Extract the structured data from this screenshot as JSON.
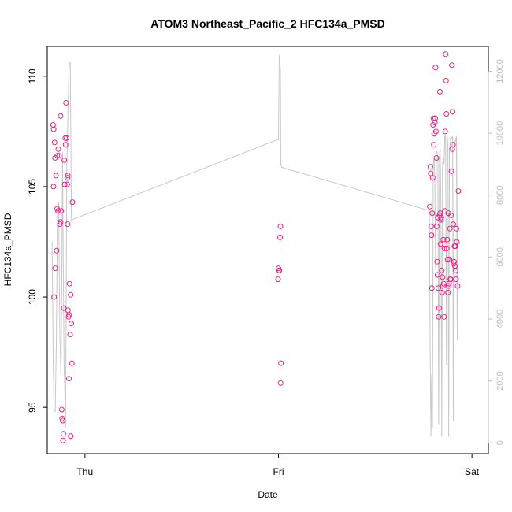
{
  "chart_data": {
    "type": "scatter",
    "title": "ATOM3 Northeast_Pacific_2 HFC134a_PMSD",
    "xlabel": "Date",
    "ylabel": "HFC134a_PMSD",
    "x_ticks": [
      {
        "label": "Thu",
        "value": 1.0
      },
      {
        "label": "Fri",
        "value": 2.0
      },
      {
        "label": "Sat",
        "value": 3.0
      }
    ],
    "xlim": [
      0.805,
      3.085
    ],
    "ylim": [
      92.9,
      111.35
    ],
    "y_ticks": [
      95,
      100,
      105,
      110
    ],
    "y2lim": [
      -350,
      12800
    ],
    "y2_ticks": [
      0,
      2000,
      4000,
      6000,
      8000,
      10000,
      12000
    ],
    "point_color": "#ee1f84",
    "secondary_line_color": "#c8c8c8",
    "series": [
      {
        "points": [
          [
            0.835,
            107.8
          ],
          [
            0.838,
            107.6
          ],
          [
            0.843,
            107.0
          ],
          [
            0.845,
            106.3
          ],
          [
            0.85,
            105.5
          ],
          [
            0.857,
            106.4
          ],
          [
            0.862,
            106.7
          ],
          [
            0.866,
            106.4
          ],
          [
            0.87,
            103.3
          ],
          [
            0.874,
            103.4
          ],
          [
            0.877,
            103.9
          ],
          [
            0.882,
            94.5
          ],
          [
            0.885,
            94.4
          ],
          [
            0.888,
            93.8
          ],
          [
            0.89,
            99.5
          ],
          [
            0.893,
            106.2
          ],
          [
            0.895,
            105.1
          ],
          [
            0.898,
            107.2
          ],
          [
            0.9,
            106.9
          ],
          [
            0.902,
            108.8
          ],
          [
            0.905,
            107.2
          ],
          [
            0.908,
            105.1
          ],
          [
            0.91,
            103.3
          ],
          [
            0.912,
            99.4
          ],
          [
            0.915,
            99.1
          ],
          [
            0.918,
            99.2
          ],
          [
            0.92,
            100.6
          ],
          [
            0.923,
            98.3
          ],
          [
            0.926,
            100.1
          ],
          [
            0.929,
            98.8
          ],
          [
            0.932,
            97.0
          ],
          [
            0.935,
            104.3
          ],
          [
            0.837,
            105.0
          ],
          [
            0.84,
            100.0
          ],
          [
            0.846,
            101.3
          ],
          [
            0.853,
            102.1
          ],
          [
            0.856,
            104.0
          ],
          [
            0.86,
            103.9
          ],
          [
            0.88,
            94.9
          ],
          [
            0.886,
            93.5
          ],
          [
            0.909,
            105.4
          ],
          [
            0.911,
            105.5
          ],
          [
            0.917,
            96.3
          ],
          [
            0.926,
            93.7
          ],
          [
            0.874,
            108.2
          ],
          [
            1.998,
            100.8
          ],
          [
            2.0,
            101.3
          ],
          [
            2.003,
            101.2
          ],
          [
            2.005,
            101.2
          ],
          [
            2.008,
            102.7
          ],
          [
            2.01,
            103.2
          ],
          [
            2.013,
            97.0
          ],
          [
            2.011,
            96.1
          ],
          [
            2.782,
            104.1
          ],
          [
            2.785,
            105.9
          ],
          [
            2.787,
            105.6
          ],
          [
            2.789,
            103.2
          ],
          [
            2.791,
            102.8
          ],
          [
            2.793,
            100.4
          ],
          [
            2.795,
            103.8
          ],
          [
            2.797,
            105.4
          ],
          [
            2.799,
            107.8
          ],
          [
            2.801,
            108.1
          ],
          [
            2.803,
            106.9
          ],
          [
            2.805,
            107.4
          ],
          [
            2.808,
            107.9
          ],
          [
            2.81,
            108.1
          ],
          [
            2.812,
            110.4
          ],
          [
            2.814,
            107.5
          ],
          [
            2.816,
            106.3
          ],
          [
            2.818,
            103.2
          ],
          [
            2.82,
            101.6
          ],
          [
            2.822,
            101.0
          ],
          [
            2.824,
            103.6
          ],
          [
            2.826,
            100.4
          ],
          [
            2.828,
            99.1
          ],
          [
            2.83,
            99.5
          ],
          [
            2.832,
            103.7
          ],
          [
            2.834,
            109.3
          ],
          [
            2.836,
            103.8
          ],
          [
            2.838,
            102.4
          ],
          [
            2.84,
            103.5
          ],
          [
            2.842,
            103.6
          ],
          [
            2.844,
            101.2
          ],
          [
            2.846,
            100.2
          ],
          [
            2.848,
            100.9
          ],
          [
            2.85,
            100.5
          ],
          [
            2.852,
            102.6
          ],
          [
            2.854,
            100.6
          ],
          [
            2.856,
            99.1
          ],
          [
            2.858,
            102.2
          ],
          [
            2.86,
            103.9
          ],
          [
            2.862,
            107.5
          ],
          [
            2.864,
            111.0
          ],
          [
            2.866,
            109.8
          ],
          [
            2.868,
            108.3
          ],
          [
            2.87,
            102.2
          ],
          [
            2.872,
            102.6
          ],
          [
            2.874,
            101.7
          ],
          [
            2.876,
            100.2
          ],
          [
            2.878,
            103.8
          ],
          [
            2.88,
            100.5
          ],
          [
            2.882,
            100.6
          ],
          [
            2.884,
            101.7
          ],
          [
            2.886,
            103.1
          ],
          [
            2.888,
            100.8
          ],
          [
            2.89,
            100.8
          ],
          [
            2.892,
            103.7
          ],
          [
            2.894,
            105.7
          ],
          [
            2.896,
            110.5
          ],
          [
            2.898,
            106.7
          ],
          [
            2.9,
            108.4
          ],
          [
            2.902,
            106.9
          ],
          [
            2.904,
            103.3
          ],
          [
            2.906,
            101.5
          ],
          [
            2.908,
            101.6
          ],
          [
            2.91,
            102.3
          ],
          [
            2.912,
            101.4
          ],
          [
            2.914,
            102.3
          ],
          [
            2.916,
            101.2
          ],
          [
            2.918,
            100.8
          ],
          [
            2.92,
            103.1
          ],
          [
            2.922,
            102.5
          ],
          [
            2.926,
            100.5
          ],
          [
            2.93,
            104.8
          ]
        ]
      },
      {
        "axis": "right",
        "points": [
          [
            0.83,
            6500
          ],
          [
            0.836,
            2600
          ],
          [
            0.84,
            1100
          ],
          [
            0.846,
            1000
          ],
          [
            0.852,
            3200
          ],
          [
            0.858,
            7500
          ],
          [
            0.864,
            7800
          ],
          [
            0.87,
            3400
          ],
          [
            0.876,
            2200
          ],
          [
            0.88,
            4900
          ],
          [
            0.884,
            9400
          ],
          [
            0.888,
            5400
          ],
          [
            0.892,
            2500
          ],
          [
            0.896,
            1600
          ],
          [
            0.9,
            500
          ],
          [
            0.906,
            8900
          ],
          [
            0.912,
            10700
          ],
          [
            0.918,
            12200
          ],
          [
            0.924,
            12300
          ],
          [
            0.93,
            7200
          ],
          [
            2.0,
            9800
          ],
          [
            2.004,
            12500
          ],
          [
            2.006,
            12500
          ],
          [
            2.01,
            12000
          ],
          [
            2.012,
            9000
          ],
          [
            2.014,
            9000
          ],
          [
            2.016,
            8900
          ],
          [
            2.78,
            7500
          ],
          [
            2.784,
            3000
          ],
          [
            2.788,
            200
          ],
          [
            2.792,
            2200
          ],
          [
            2.796,
            500
          ],
          [
            2.8,
            9000
          ],
          [
            2.804,
            9200
          ],
          [
            2.808,
            8600
          ],
          [
            2.812,
            5600
          ],
          [
            2.816,
            9400
          ],
          [
            2.82,
            9400
          ],
          [
            2.824,
            9200
          ],
          [
            2.828,
            600
          ],
          [
            2.832,
            9300
          ],
          [
            2.836,
            9500
          ],
          [
            2.84,
            7500
          ],
          [
            2.844,
            200
          ],
          [
            2.848,
            9000
          ],
          [
            2.852,
            9200
          ],
          [
            2.856,
            9000
          ],
          [
            2.86,
            9900
          ],
          [
            2.864,
            9900
          ],
          [
            2.868,
            2500
          ],
          [
            2.872,
            9900
          ],
          [
            2.876,
            9600
          ],
          [
            2.88,
            200
          ],
          [
            2.884,
            9500
          ],
          [
            2.888,
            9700
          ],
          [
            2.892,
            9900
          ],
          [
            2.896,
            9800
          ],
          [
            2.9,
            9900
          ],
          [
            2.904,
            700
          ],
          [
            2.908,
            9800
          ],
          [
            2.912,
            9600
          ],
          [
            2.916,
            9800
          ],
          [
            2.92,
            9900
          ],
          [
            2.924,
            3300
          ],
          [
            2.928,
            9800
          ]
        ]
      }
    ]
  }
}
